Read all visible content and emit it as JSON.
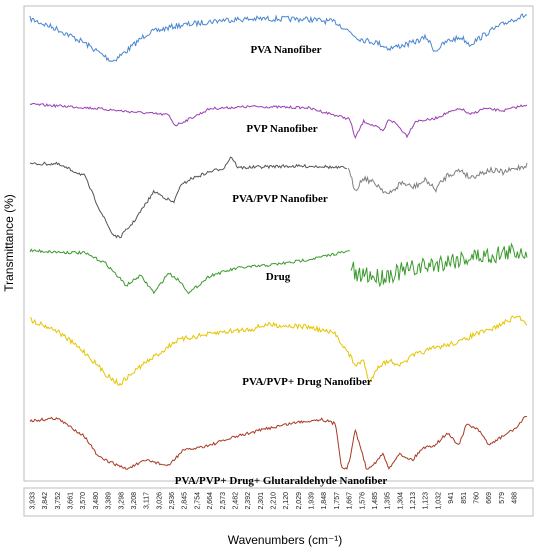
{
  "chart_data": {
    "type": "line",
    "xlabel": "Wavenumbers (cm⁻¹)",
    "ylabel": "Transmittance (%)",
    "x_reversed": true,
    "xlim": [
      3990,
      430
    ],
    "tick_labels": [
      "3,933",
      "3,842",
      "3,752",
      "3,661",
      "3,570",
      "3,480",
      "3,389",
      "3,298",
      "3,208",
      "3,117",
      "3,026",
      "2,936",
      "2,845",
      "2,754",
      "2,664",
      "2,573",
      "2,482",
      "2,392",
      "2,301",
      "2,210",
      "2,120",
      "2,029",
      "1,939",
      "1,848",
      "1,757",
      "1,667",
      "1,576",
      "1,485",
      "1,395",
      "1,304",
      "1,213",
      "1,123",
      "1,032",
      "941",
      "851",
      "760",
      "669",
      "579",
      "488"
    ],
    "series": [
      {
        "name": "PVA Nanofiber",
        "color": "#4a86d0",
        "noise": 0.1,
        "points": [
          [
            3990,
            0.12
          ],
          [
            3800,
            0.3
          ],
          [
            3600,
            0.55
          ],
          [
            3400,
            0.88
          ],
          [
            3300,
            0.7
          ],
          [
            3150,
            0.38
          ],
          [
            2950,
            0.25
          ],
          [
            2850,
            0.22
          ],
          [
            2600,
            0.14
          ],
          [
            2300,
            0.12
          ],
          [
            2000,
            0.13
          ],
          [
            1800,
            0.18
          ],
          [
            1700,
            0.35
          ],
          [
            1650,
            0.45
          ],
          [
            1600,
            0.5
          ],
          [
            1500,
            0.55
          ],
          [
            1420,
            0.65
          ],
          [
            1330,
            0.6
          ],
          [
            1250,
            0.55
          ],
          [
            1150,
            0.45
          ],
          [
            1090,
            0.7
          ],
          [
            1000,
            0.52
          ],
          [
            900,
            0.45
          ],
          [
            840,
            0.58
          ],
          [
            700,
            0.35
          ],
          [
            550,
            0.15
          ],
          [
            430,
            0.05
          ]
        ]
      },
      {
        "name": "PVP Nanofiber",
        "color": "#9b3fb5",
        "noise": 0.06,
        "points": [
          [
            3990,
            0.2
          ],
          [
            3700,
            0.25
          ],
          [
            3500,
            0.3
          ],
          [
            3350,
            0.35
          ],
          [
            3000,
            0.45
          ],
          [
            2950,
            0.7
          ],
          [
            2850,
            0.55
          ],
          [
            2700,
            0.3
          ],
          [
            2400,
            0.25
          ],
          [
            2000,
            0.28
          ],
          [
            1700,
            0.55
          ],
          [
            1660,
            1.0
          ],
          [
            1600,
            0.6
          ],
          [
            1500,
            0.75
          ],
          [
            1460,
            0.85
          ],
          [
            1420,
            0.55
          ],
          [
            1370,
            0.65
          ],
          [
            1290,
            0.95
          ],
          [
            1230,
            0.6
          ],
          [
            1100,
            0.55
          ],
          [
            1000,
            0.4
          ],
          [
            900,
            0.3
          ],
          [
            840,
            0.45
          ],
          [
            740,
            0.3
          ],
          [
            600,
            0.35
          ],
          [
            430,
            0.2
          ]
        ]
      },
      {
        "name": "PVA/PVP Nanofiber",
        "color": "#555555",
        "noise": 0.04,
        "points": [
          [
            3990,
            0.05
          ],
          [
            3800,
            0.05
          ],
          [
            3600,
            0.2
          ],
          [
            3500,
            0.6
          ],
          [
            3400,
            0.95
          ],
          [
            3350,
            1.0
          ],
          [
            3250,
            0.8
          ],
          [
            3100,
            0.4
          ],
          [
            2960,
            0.55
          ],
          [
            2920,
            0.35
          ],
          [
            2850,
            0.25
          ],
          [
            2700,
            0.15
          ],
          [
            2600,
            0.1
          ],
          [
            2550,
            -0.05
          ],
          [
            2500,
            0.1
          ],
          [
            2200,
            0.08
          ],
          [
            1900,
            0.08
          ],
          [
            1800,
            0.1
          ],
          [
            1720,
            0.1
          ]
        ]
      },
      {
        "name": "PVA/PVP Nanofiber",
        "color": "#808080",
        "noise": 0.12,
        "points": [
          [
            1710,
            0.2
          ],
          [
            1660,
            0.6
          ],
          [
            1600,
            0.35
          ],
          [
            1500,
            0.5
          ],
          [
            1420,
            0.7
          ],
          [
            1330,
            0.45
          ],
          [
            1250,
            0.55
          ],
          [
            1150,
            0.4
          ],
          [
            1090,
            0.6
          ],
          [
            1000,
            0.3
          ],
          [
            900,
            0.2
          ],
          [
            840,
            0.35
          ],
          [
            700,
            0.2
          ],
          [
            600,
            0.25
          ],
          [
            430,
            0.1
          ]
        ]
      },
      {
        "name": "Drug",
        "color": "#3c9a2e",
        "noise": 0.06,
        "points": [
          [
            3990,
            0.05
          ],
          [
            3800,
            0.08
          ],
          [
            3600,
            0.1
          ],
          [
            3450,
            0.3
          ],
          [
            3300,
            0.75
          ],
          [
            3200,
            0.55
          ],
          [
            3100,
            0.9
          ],
          [
            3000,
            0.5
          ],
          [
            2920,
            0.65
          ],
          [
            2850,
            0.9
          ],
          [
            2700,
            0.55
          ],
          [
            2500,
            0.4
          ],
          [
            2300,
            0.35
          ],
          [
            2100,
            0.28
          ],
          [
            1900,
            0.18
          ],
          [
            1780,
            0.1
          ],
          [
            1720,
            0.08
          ],
          [
            1700,
            0.05
          ]
        ]
      },
      {
        "name": "Drug",
        "color": "#3c9a2e",
        "noise": 0.45,
        "points": [
          [
            1690,
            0.4
          ],
          [
            1650,
            0.75
          ],
          [
            1600,
            0.6
          ],
          [
            1500,
            0.7
          ],
          [
            1400,
            0.6
          ],
          [
            1300,
            0.55
          ],
          [
            1200,
            0.45
          ],
          [
            1100,
            0.4
          ],
          [
            1000,
            0.3
          ],
          [
            900,
            0.25
          ],
          [
            800,
            0.2
          ],
          [
            700,
            0.18
          ],
          [
            600,
            0.12
          ],
          [
            430,
            0.05
          ]
        ]
      },
      {
        "name": "PVA/PVP+ Drug Nanofiber",
        "color": "#e6c400",
        "noise": 0.07,
        "points": [
          [
            3990,
            0.05
          ],
          [
            3800,
            0.2
          ],
          [
            3600,
            0.5
          ],
          [
            3450,
            0.8
          ],
          [
            3350,
            0.95
          ],
          [
            3200,
            0.7
          ],
          [
            3050,
            0.5
          ],
          [
            2950,
            0.35
          ],
          [
            2850,
            0.3
          ],
          [
            2600,
            0.22
          ],
          [
            2400,
            0.18
          ],
          [
            2300,
            0.12
          ],
          [
            2000,
            0.15
          ],
          [
            1800,
            0.25
          ],
          [
            1700,
            0.55
          ],
          [
            1650,
            0.7
          ],
          [
            1600,
            0.6
          ],
          [
            1560,
            0.95
          ],
          [
            1500,
            0.7
          ],
          [
            1420,
            0.62
          ],
          [
            1330,
            0.68
          ],
          [
            1250,
            0.55
          ],
          [
            1100,
            0.45
          ],
          [
            1000,
            0.4
          ],
          [
            900,
            0.35
          ],
          [
            800,
            0.25
          ],
          [
            700,
            0.2
          ],
          [
            600,
            0.1
          ],
          [
            500,
            0.0
          ],
          [
            430,
            0.1
          ]
        ]
      },
      {
        "name": "PVA/PVP+ Drug+ Glutaraldehyde Nanofiber",
        "color": "#a83a24",
        "noise": 0.05,
        "points": [
          [
            3990,
            0.15
          ],
          [
            3800,
            0.1
          ],
          [
            3700,
            0.25
          ],
          [
            3600,
            0.4
          ],
          [
            3500,
            0.75
          ],
          [
            3300,
            0.95
          ],
          [
            3150,
            0.8
          ],
          [
            3000,
            0.9
          ],
          [
            2900,
            0.65
          ],
          [
            2700,
            0.55
          ],
          [
            2500,
            0.4
          ],
          [
            2300,
            0.28
          ],
          [
            2100,
            0.18
          ],
          [
            1900,
            0.12
          ],
          [
            1800,
            0.2
          ],
          [
            1760,
            0.9
          ],
          [
            1720,
            0.95
          ],
          [
            1700,
            0.8
          ],
          [
            1660,
            0.3
          ],
          [
            1620,
            0.6
          ],
          [
            1580,
            0.95
          ],
          [
            1520,
            0.85
          ],
          [
            1460,
            0.7
          ],
          [
            1420,
            0.95
          ],
          [
            1350,
            0.7
          ],
          [
            1250,
            0.8
          ],
          [
            1180,
            0.6
          ],
          [
            1090,
            0.55
          ],
          [
            1000,
            0.35
          ],
          [
            920,
            0.55
          ],
          [
            860,
            0.2
          ],
          [
            780,
            0.3
          ],
          [
            700,
            0.55
          ],
          [
            600,
            0.4
          ],
          [
            500,
            0.25
          ],
          [
            430,
            0.05
          ]
        ]
      }
    ]
  }
}
